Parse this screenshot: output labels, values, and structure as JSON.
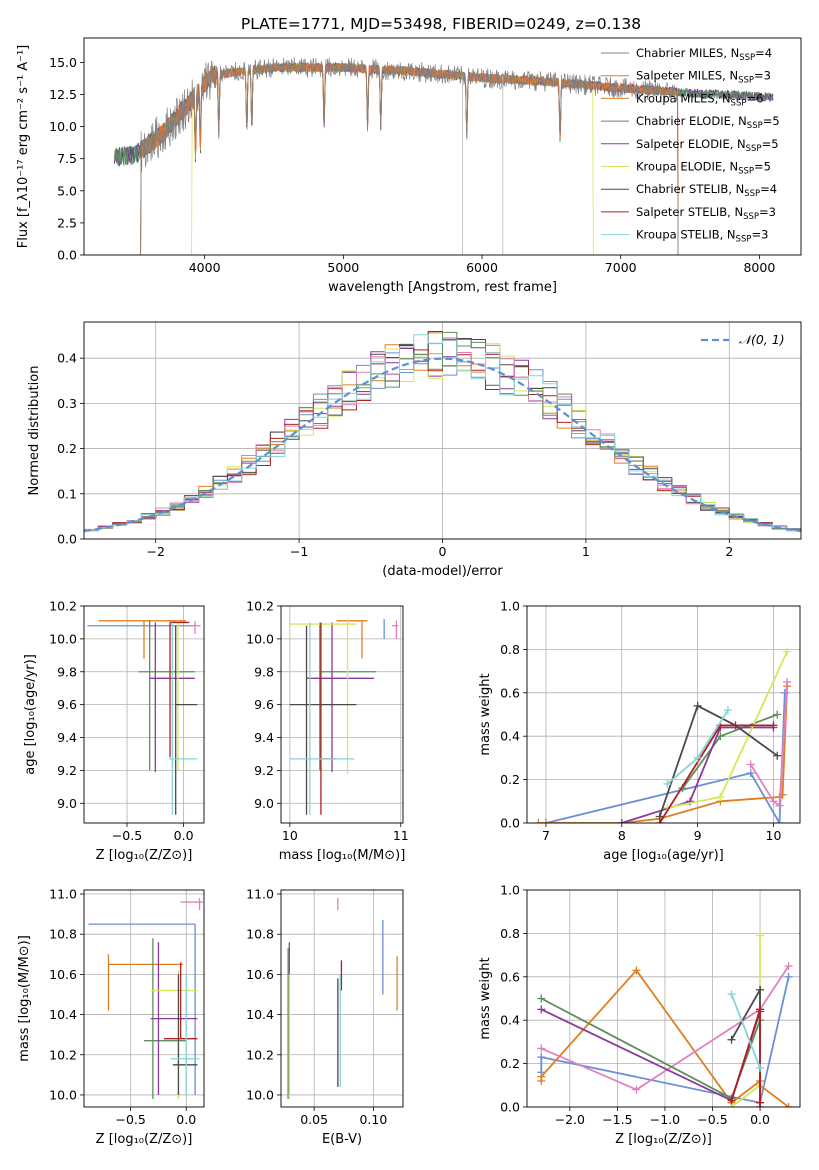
{
  "figure_title": "PLATE=1771, MJD=53498, FIBERID=0249, z=0.138",
  "palette": [
    "#6a8fd8",
    "#e07f22",
    "#e37fbf",
    "#5c8f5c",
    "#8a3a9e",
    "#d4e95a",
    "#4a4a4a",
    "#b02020",
    "#86d3d8",
    "#808080"
  ],
  "models": [
    {
      "id": "CM",
      "label": "Chabrier MILES, N",
      "sub": "SSP",
      "n": "=4",
      "color": "#808080"
    },
    {
      "id": "SM",
      "label": "Salpeter MILES, N",
      "sub": "SSP",
      "n": "=3",
      "color": "#e8743a"
    },
    {
      "id": "KM",
      "label": "Kroupa MILES, N",
      "sub": "SSP",
      "n": "=6",
      "color": "#e07f22"
    },
    {
      "id": "CE",
      "label": "Chabrier ELODIE, N",
      "sub": "SSP",
      "n": "=5",
      "color": "#5c8f5c"
    },
    {
      "id": "SE",
      "label": "Salpeter ELODIE, N",
      "sub": "SSP",
      "n": "=5",
      "color": "#8a3a9e"
    },
    {
      "id": "KE",
      "label": "Kroupa ELODIE, N",
      "sub": "SSP",
      "n": "=5",
      "color": "#d4e95a"
    },
    {
      "id": "CS",
      "label": "Chabrier STELIB, N",
      "sub": "SSP",
      "n": "=4",
      "color": "#4a4a4a"
    },
    {
      "id": "SS",
      "label": "Salpeter STELIB, N",
      "sub": "SSP",
      "n": "=3",
      "color": "#b02020"
    },
    {
      "id": "KS",
      "label": "Kroupa STELIB, N",
      "sub": "SSP",
      "n": "=3",
      "color": "#86d3d8"
    }
  ],
  "chart_data": [
    {
      "id": "spectrum",
      "type": "line",
      "xlabel": "wavelength [Angstrom, rest frame]",
      "ylabel": "Flux [f_λ 10^-17 erg cm^-2 s^-1 A^-1]",
      "xlim": [
        3130,
        8300
      ],
      "ylim": [
        0,
        16.9
      ],
      "xticks": [
        4000,
        5000,
        6000,
        7000,
        8000
      ],
      "yticks": [
        0.0,
        2.5,
        5.0,
        7.5,
        10.0,
        12.5,
        15.0
      ],
      "data_range": [
        3350,
        8100
      ],
      "continuum": [
        [
          3350,
          7.6
        ],
        [
          3500,
          7.8
        ],
        [
          3700,
          9.5
        ],
        [
          3900,
          12.0
        ],
        [
          4050,
          14.0
        ],
        [
          4500,
          14.6
        ],
        [
          5000,
          14.6
        ],
        [
          5500,
          14.3
        ],
        [
          6000,
          13.8
        ],
        [
          6500,
          13.5
        ],
        [
          7000,
          13.0
        ],
        [
          7500,
          12.6
        ],
        [
          8100,
          12.3
        ]
      ],
      "absorption_lines": [
        3934,
        3969,
        4102,
        4304,
        4340,
        4861,
        5175,
        5270,
        5890,
        6563
      ],
      "model_cutoffs": [
        {
          "model": "SM",
          "lo": 3540,
          "hi": 7410
        },
        {
          "model": "KM",
          "lo": 3540,
          "hi": 7410
        },
        {
          "model": "KE",
          "lo": 3910,
          "hi": 6800
        },
        {
          "model": "CM",
          "lo": 3540,
          "hi": 7410
        },
        {
          "model": "SS",
          "lo": 3540,
          "hi": 7410
        }
      ],
      "spikes_to_zero": [
        5860,
        6150
      ]
    },
    {
      "id": "residuals",
      "type": "step",
      "xlabel": "(data-model)/error",
      "ylabel": "Normed distribution",
      "xlim": [
        -2.5,
        2.5
      ],
      "ylim": [
        0,
        0.48
      ],
      "xticks": [
        -2,
        -1,
        0,
        1,
        2
      ],
      "yticks": [
        0.0,
        0.1,
        0.2,
        0.3,
        0.4
      ],
      "bin_width": 0.1,
      "gaussian_label": "𝒩(0, 1)",
      "gaussian_color": "#5b8fd8"
    },
    {
      "id": "age_vs_Z",
      "type": "errorbar",
      "xlabel": "Z [log10(Z/Z⊙)]",
      "ylabel": "age [log10(age/yr)]",
      "xlim": [
        -0.88,
        0.18
      ],
      "ylim": [
        8.88,
        10.2
      ],
      "xticks": [
        -0.5,
        0.0
      ],
      "yticks": [
        9.0,
        9.2,
        9.4,
        9.6,
        9.8,
        10.0,
        10.2
      ],
      "points": [
        {
          "color": "#6a8fd8",
          "x": -0.85,
          "xlo": -0.85,
          "xhi": 0.08,
          "y": 10.08,
          "ylo": 10.08,
          "yhi": 10.08
        },
        {
          "color": "#e07f22",
          "x": -0.35,
          "xlo": -0.75,
          "xhi": 0.02,
          "y": 10.11,
          "ylo": 9.88,
          "yhi": 10.11
        },
        {
          "color": "#e37fbf",
          "x": 0.1,
          "xlo": 0.05,
          "xhi": 0.15,
          "y": 10.08,
          "ylo": 10.03,
          "yhi": 10.11
        },
        {
          "color": "#5c8f5c",
          "x": -0.3,
          "xlo": -0.4,
          "xhi": 0.1,
          "y": 9.8,
          "ylo": 9.2,
          "yhi": 10.11
        },
        {
          "color": "#8a3a9e",
          "x": -0.25,
          "xlo": -0.3,
          "xhi": 0.1,
          "y": 9.76,
          "ylo": 9.19,
          "yhi": 10.1
        },
        {
          "color": "#d4e95a",
          "x": -0.05,
          "xlo": -0.1,
          "xhi": 0.05,
          "y": 10.1,
          "ylo": 9.2,
          "yhi": 10.12
        },
        {
          "color": "#4a4a4a",
          "x": -0.07,
          "xlo": -0.07,
          "xhi": 0.12,
          "y": 9.6,
          "ylo": 8.93,
          "yhi": 10.08
        },
        {
          "color": "#b02020",
          "x": -0.12,
          "xlo": -0.12,
          "xhi": 0.05,
          "y": 10.1,
          "ylo": 9.28,
          "yhi": 10.1
        },
        {
          "color": "#86d3d8",
          "x": -0.1,
          "xlo": -0.13,
          "xhi": 0.12,
          "y": 9.27,
          "ylo": 8.93,
          "yhi": 10.1
        }
      ]
    },
    {
      "id": "age_vs_mass",
      "type": "errorbar",
      "xlabel": "mass [log10(M/M⊙)]",
      "ylabel": "",
      "xlim": [
        9.92,
        11.02
      ],
      "ylim": [
        8.88,
        10.2
      ],
      "xticks": [
        10,
        11
      ],
      "yticks": [
        9.0,
        9.2,
        9.4,
        9.6,
        9.8,
        10.0,
        10.2
      ],
      "points": [
        {
          "color": "#6a8fd8",
          "x": 10.85,
          "xlo": 10.85,
          "xhi": 10.85,
          "y": 10.08,
          "ylo": 10.0,
          "yhi": 10.12
        },
        {
          "color": "#e07f22",
          "x": 10.65,
          "xlo": 10.42,
          "xhi": 10.7,
          "y": 10.11,
          "ylo": 9.88,
          "yhi": 10.11
        },
        {
          "color": "#e37fbf",
          "x": 10.96,
          "xlo": 10.92,
          "xhi": 10.98,
          "y": 10.08,
          "ylo": 10.0,
          "yhi": 10.11
        },
        {
          "color": "#5c8f5c",
          "x": 10.27,
          "xlo": 10.27,
          "xhi": 10.78,
          "y": 9.8,
          "ylo": 9.2,
          "yhi": 10.1
        },
        {
          "color": "#8a3a9e",
          "x": 10.38,
          "xlo": 10.15,
          "xhi": 10.76,
          "y": 9.76,
          "ylo": 9.19,
          "yhi": 10.1
        },
        {
          "color": "#d4e95a",
          "x": 10.52,
          "xlo": 10.0,
          "xhi": 10.6,
          "y": 10.09,
          "ylo": 9.18,
          "yhi": 10.12
        },
        {
          "color": "#4a4a4a",
          "x": 10.15,
          "xlo": 10.0,
          "xhi": 10.6,
          "y": 9.6,
          "ylo": 8.93,
          "yhi": 10.08
        },
        {
          "color": "#b02020",
          "x": 10.28,
          "xlo": 10.28,
          "xhi": 10.42,
          "y": 9.27,
          "ylo": 8.93,
          "yhi": 10.1
        },
        {
          "color": "#86d3d8",
          "x": 10.18,
          "xlo": 10.0,
          "xhi": 10.58,
          "y": 9.27,
          "ylo": 8.93,
          "yhi": 10.1
        }
      ]
    },
    {
      "id": "mass_weight_vs_age",
      "type": "line",
      "xlabel": "age  [log10(age/yr)]",
      "ylabel": "mass weight",
      "xlim": [
        6.75,
        10.35
      ],
      "ylim": [
        0,
        1
      ],
      "xticks": [
        7,
        8,
        9,
        10
      ],
      "yticks": [
        0.0,
        0.2,
        0.4,
        0.6,
        0.8,
        1.0
      ],
      "series": [
        {
          "color": "#6a8fd8",
          "x": [
            7.0,
            9.7,
            10.08,
            10.15
          ],
          "y": [
            0.0,
            0.23,
            0.0,
            0.6
          ]
        },
        {
          "color": "#e07f22",
          "x": [
            6.9,
            8.0,
            8.5,
            9.3,
            10.08,
            10.12,
            10.18
          ],
          "y": [
            0.0,
            0.0,
            0.02,
            0.1,
            0.12,
            0.13,
            0.63
          ]
        },
        {
          "color": "#e37fbf",
          "x": [
            9.7,
            10.0,
            10.08,
            10.18
          ],
          "y": [
            0.27,
            0.1,
            0.08,
            0.65
          ]
        },
        {
          "color": "#5c8f5c",
          "x": [
            8.8,
            9.3,
            10.05
          ],
          "y": [
            0.16,
            0.4,
            0.5
          ]
        },
        {
          "color": "#8a3a9e",
          "x": [
            8.0,
            8.9,
            9.3,
            10.0
          ],
          "y": [
            0.0,
            0.1,
            0.44,
            0.44
          ]
        },
        {
          "color": "#d4e95a",
          "x": [
            8.6,
            9.3,
            10.18
          ],
          "y": [
            0.07,
            0.12,
            0.79
          ]
        },
        {
          "color": "#4a4a4a",
          "x": [
            8.5,
            9.0,
            9.5,
            10.05
          ],
          "y": [
            0.03,
            0.54,
            0.45,
            0.31
          ]
        },
        {
          "color": "#b02020",
          "x": [
            8.5,
            9.3,
            10.0
          ],
          "y": [
            0.0,
            0.45,
            0.45
          ]
        },
        {
          "color": "#86d3d8",
          "x": [
            8.6,
            9.0,
            9.4
          ],
          "y": [
            0.18,
            0.3,
            0.52
          ]
        }
      ]
    },
    {
      "id": "mass_vs_Z",
      "type": "errorbar",
      "xlabel": "Z [log10(Z/Z⊙)]",
      "ylabel": "mass [log10(M/M⊙)]",
      "xlim": [
        -0.92,
        0.16
      ],
      "ylim": [
        9.94,
        11.02
      ],
      "xticks": [
        -0.5,
        0.0
      ],
      "yticks": [
        10.0,
        10.2,
        10.4,
        10.6,
        10.8,
        11.0
      ],
      "points": [
        {
          "color": "#6a8fd8",
          "x": 0.08,
          "xlo": -0.88,
          "xhi": 0.08,
          "y": 10.85,
          "ylo": 10.0,
          "yhi": 10.85
        },
        {
          "color": "#e07f22",
          "x": -0.7,
          "xlo": -0.7,
          "xhi": -0.03,
          "y": 10.65,
          "ylo": 10.42,
          "yhi": 10.7
        },
        {
          "color": "#e37fbf",
          "x": 0.12,
          "xlo": -0.05,
          "xhi": 0.15,
          "y": 10.96,
          "ylo": 10.92,
          "yhi": 10.98
        },
        {
          "color": "#5c8f5c",
          "x": -0.3,
          "xlo": -0.38,
          "xhi": 0.0,
          "y": 10.27,
          "ylo": 9.98,
          "yhi": 10.78
        },
        {
          "color": "#8a3a9e",
          "x": -0.25,
          "xlo": -0.32,
          "xhi": 0.1,
          "y": 10.38,
          "ylo": 10.0,
          "yhi": 10.76
        },
        {
          "color": "#d4e95a",
          "x": -0.07,
          "xlo": -0.32,
          "xhi": 0.1,
          "y": 10.52,
          "ylo": 9.98,
          "yhi": 10.62
        },
        {
          "color": "#4a4a4a",
          "x": -0.07,
          "xlo": -0.12,
          "xhi": 0.1,
          "y": 10.15,
          "ylo": 10.0,
          "yhi": 10.6
        },
        {
          "color": "#b02020",
          "x": -0.05,
          "xlo": -0.2,
          "xhi": 0.1,
          "y": 10.28,
          "ylo": 10.28,
          "yhi": 10.66
        },
        {
          "color": "#86d3d8",
          "x": 0.0,
          "xlo": -0.14,
          "xhi": 0.12,
          "y": 10.18,
          "ylo": 10.0,
          "yhi": 10.6
        }
      ]
    },
    {
      "id": "mass_vs_ebv",
      "type": "errorbar",
      "xlabel": "E(B-V)",
      "ylabel": "",
      "xlim": [
        0.022,
        0.125
      ],
      "ylim": [
        9.94,
        11.02
      ],
      "xticks": [
        0.05,
        0.1
      ],
      "yticks": [
        10.0,
        10.2,
        10.4,
        10.6,
        10.8,
        11.0
      ],
      "points": [
        {
          "color": "#6a8fd8",
          "x": 0.108,
          "xlo": 0.108,
          "xhi": 0.108,
          "y": 10.7,
          "ylo": 10.5,
          "yhi": 10.87
        },
        {
          "color": "#e07f22",
          "x": 0.12,
          "xlo": 0.12,
          "xhi": 0.12,
          "y": 10.55,
          "ylo": 10.42,
          "yhi": 10.69
        },
        {
          "color": "#e37fbf",
          "x": 0.07,
          "xlo": 0.07,
          "xhi": 0.07,
          "y": 10.96,
          "ylo": 10.92,
          "yhi": 10.98
        },
        {
          "color": "#5c8f5c",
          "x": 0.028,
          "xlo": 0.028,
          "xhi": 0.028,
          "y": 10.3,
          "ylo": 9.98,
          "yhi": 10.73
        },
        {
          "color": "#8a3a9e",
          "x": 0.029,
          "xlo": 0.029,
          "xhi": 0.029,
          "y": 10.4,
          "ylo": 10.0,
          "yhi": 10.76
        },
        {
          "color": "#d4e95a",
          "x": 0.029,
          "xlo": 0.029,
          "xhi": 0.029,
          "y": 10.2,
          "ylo": 9.98,
          "yhi": 10.6
        },
        {
          "color": "#4a4a4a",
          "x": 0.07,
          "xlo": 0.07,
          "xhi": 0.07,
          "y": 10.3,
          "ylo": 10.04,
          "yhi": 10.58
        },
        {
          "color": "#b02020",
          "x": 0.073,
          "xlo": 0.073,
          "xhi": 0.073,
          "y": 10.6,
          "ylo": 10.52,
          "yhi": 10.67
        },
        {
          "color": "#86d3d8",
          "x": 0.072,
          "xlo": 0.072,
          "xhi": 0.072,
          "y": 10.3,
          "ylo": 10.04,
          "yhi": 10.6
        }
      ]
    },
    {
      "id": "mass_weight_vs_Z",
      "type": "line",
      "xlabel": "Z [log10(Z/Z⊙)]",
      "ylabel": "mass weight",
      "xlim": [
        -2.45,
        0.42
      ],
      "ylim": [
        0,
        1
      ],
      "xticks": [
        -2.0,
        -1.5,
        -1.0,
        -0.5,
        0.0
      ],
      "yticks": [
        0.0,
        0.2,
        0.4,
        0.6,
        0.8,
        1.0
      ],
      "series": [
        {
          "color": "#6a8fd8",
          "x": [
            -2.3,
            -2.3,
            0.0,
            0.3
          ],
          "y": [
            0.16,
            0.23,
            0.02,
            0.6
          ]
        },
        {
          "color": "#e07f22",
          "x": [
            -2.3,
            -2.3,
            -1.3,
            -0.3,
            0.0,
            0.0,
            0.3
          ],
          "y": [
            0.12,
            0.14,
            0.63,
            0.02,
            0.12,
            0.1,
            0.0
          ]
        },
        {
          "color": "#e37fbf",
          "x": [
            -2.3,
            -1.3,
            0.0,
            0.3
          ],
          "y": [
            0.27,
            0.08,
            0.45,
            0.65
          ]
        },
        {
          "color": "#5c8f5c",
          "x": [
            -2.3,
            -0.3,
            0.0
          ],
          "y": [
            0.5,
            0.04,
            0.4
          ]
        },
        {
          "color": "#8a3a9e",
          "x": [
            -2.3,
            -0.3,
            0.0
          ],
          "y": [
            0.45,
            0.03,
            0.44
          ]
        },
        {
          "color": "#d4e95a",
          "x": [
            -0.3,
            0.0,
            0.0
          ],
          "y": [
            0.0,
            0.1,
            0.79
          ]
        },
        {
          "color": "#4a4a4a",
          "x": [
            -0.3,
            0.0,
            0.0
          ],
          "y": [
            0.31,
            0.54,
            0.0
          ]
        },
        {
          "color": "#b02020",
          "x": [
            -0.3,
            0.0,
            0.0
          ],
          "y": [
            0.03,
            0.45,
            0.02
          ]
        },
        {
          "color": "#86d3d8",
          "x": [
            -0.3,
            0.0
          ],
          "y": [
            0.52,
            0.18
          ]
        }
      ]
    }
  ]
}
